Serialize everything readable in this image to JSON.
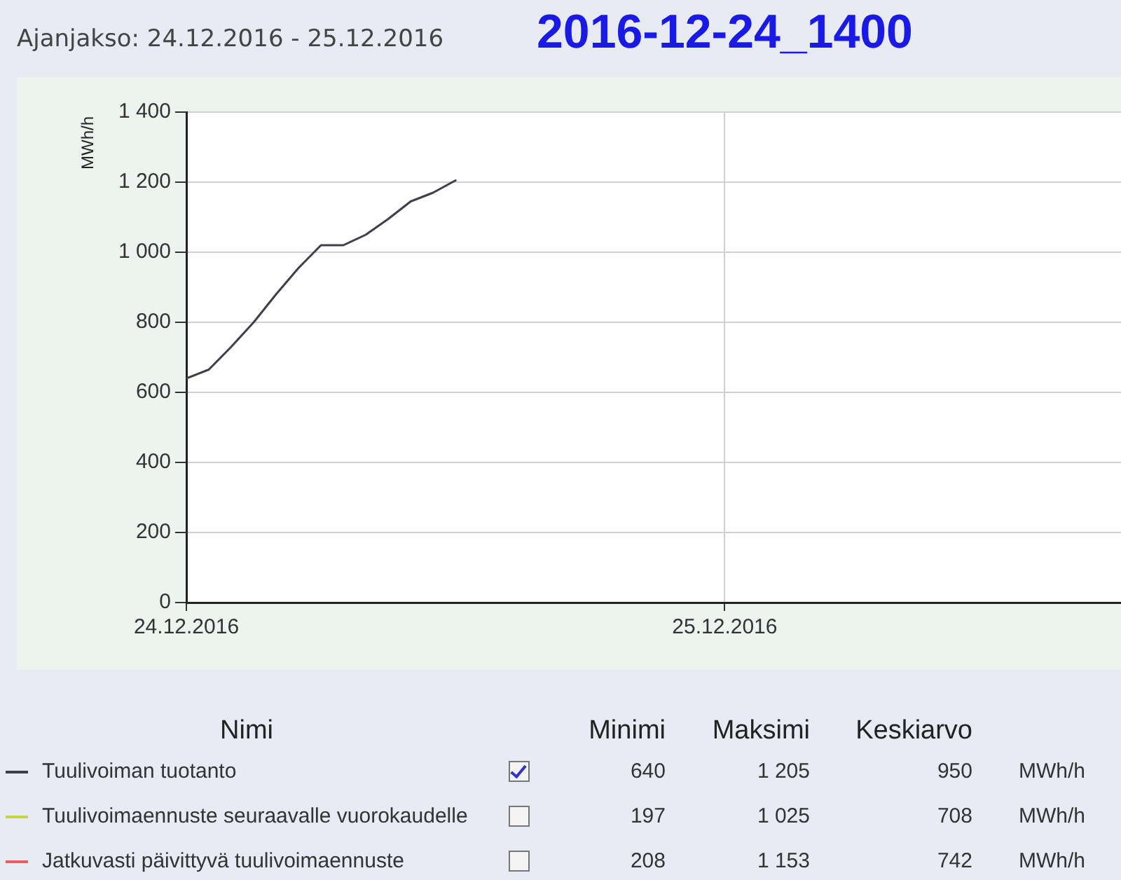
{
  "chart_data": {
    "type": "line",
    "title": "2016-12-24_1400",
    "subtitle": "Ajanjakso: 24.12.2016 - 25.12.2016",
    "ylabel": "MWh/h",
    "x": [
      "2016-12-24T00:00",
      "2016-12-24T01:00",
      "2016-12-24T02:00",
      "2016-12-24T03:00",
      "2016-12-24T04:00",
      "2016-12-24T05:00",
      "2016-12-24T06:00",
      "2016-12-24T07:00",
      "2016-12-24T08:00",
      "2016-12-24T09:00",
      "2016-12-24T10:00",
      "2016-12-24T11:00",
      "2016-12-24T12:00"
    ],
    "series": [
      {
        "name": "Tuulivoiman tuotanto",
        "color": "#3f3f4a",
        "values": [
          640,
          665,
          730,
          800,
          880,
          955,
          1020,
          1020,
          1050,
          1095,
          1145,
          1170,
          1205
        ]
      },
      {
        "name": "Tuulivoimaennuste seuraavalle vuorokaudelle",
        "color": "#c8d43c",
        "values": [
          null,
          null,
          null,
          null,
          null,
          null,
          null,
          null,
          null,
          null,
          null,
          null,
          null
        ]
      },
      {
        "name": "Jatkuvasti päivittyvä tuulivoimaennuste",
        "color": "#f05a5a",
        "values": [
          null,
          null,
          null,
          null,
          null,
          null,
          null,
          null,
          null,
          null,
          null,
          null,
          null
        ]
      }
    ],
    "xlim": [
      "2016-12-24T00:00",
      "2016-12-25T17:40"
    ],
    "xticks": [
      {
        "value": "2016-12-24",
        "label": "24.12.2016"
      },
      {
        "value": "2016-12-25",
        "label": "25.12.2016"
      }
    ],
    "ylim": [
      0,
      1400
    ],
    "yticks": [
      0,
      200,
      400,
      600,
      800,
      {
        "value": 1000,
        "label": "1 000"
      },
      {
        "value": 1200,
        "label": "1 200"
      },
      {
        "value": 1400,
        "label": "1 400"
      }
    ],
    "grid": true,
    "legend": "bottom",
    "marker": "none",
    "line_style": "solid",
    "annotations": [
      "Nimi",
      "Minimi",
      "Maksimi",
      "Keskiarvo",
      "640",
      "1 205",
      "950",
      "MWh/h",
      "197",
      "1 025",
      "708",
      "MWh/h",
      "208",
      "1 153",
      "742",
      "MWh/h"
    ]
  }
}
